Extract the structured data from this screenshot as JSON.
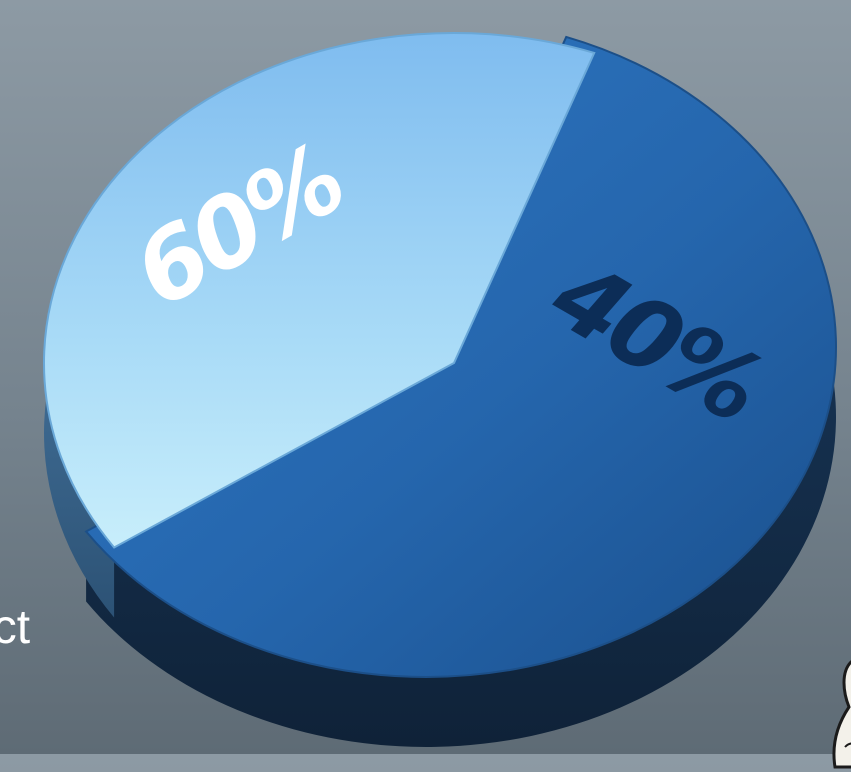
{
  "background_text": "ect",
  "chart_data": {
    "type": "pie",
    "title": "",
    "slices": [
      {
        "label": "60%",
        "value": 60,
        "color": "#2566ad",
        "side_color": "#16355a",
        "label_color": "#ffffff"
      },
      {
        "label": "40%",
        "value": 40,
        "color": "#8ec8f3",
        "side_color": "#3d6f9a",
        "label_color": "#0c2d57"
      }
    ]
  },
  "colors": {
    "background": "#7a8893",
    "dark_slice": "#2566ad",
    "light_slice": "#8ec8f3"
  }
}
